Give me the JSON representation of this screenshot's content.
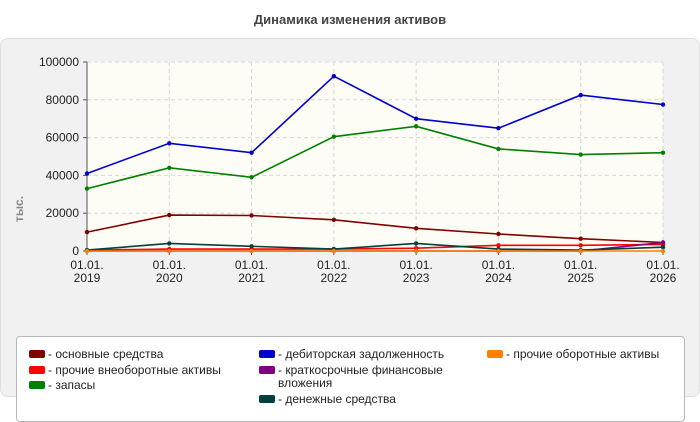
{
  "chart_data": {
    "type": "line",
    "title": "Динамика изменения активов",
    "ylabel": "тыс.",
    "xlabel": "",
    "ylim": [
      0,
      100000
    ],
    "yticks": [
      "0",
      "20000",
      "40000",
      "60000",
      "80000",
      "100000"
    ],
    "categories": [
      [
        "01.01.",
        "2019"
      ],
      [
        "01.01.",
        "2020"
      ],
      [
        "01.01.",
        "2021"
      ],
      [
        "01.01.",
        "2022"
      ],
      [
        "01.01.",
        "2023"
      ],
      [
        "01.01.",
        "2024"
      ],
      [
        "01.01.",
        "2025"
      ],
      [
        "01.01.",
        "2026"
      ]
    ],
    "grid": true,
    "legend_position": "bottom",
    "series": [
      {
        "name": "- основные средства",
        "color": "#800000",
        "values": [
          10000,
          19000,
          18800,
          16500,
          12000,
          9000,
          6500,
          4500
        ]
      },
      {
        "name": "- прочие внеоборотные активы",
        "color": "#ff0000",
        "values": [
          500,
          1000,
          1000,
          1000,
          1500,
          3000,
          3000,
          3500
        ]
      },
      {
        "name": "- запасы",
        "color": "#008000",
        "values": [
          33000,
          44000,
          39000,
          60500,
          66000,
          54000,
          51000,
          52000
        ]
      },
      {
        "name": "- дебиторская задолженность",
        "color": "#0000cc",
        "values": [
          41000,
          57000,
          52000,
          92500,
          70000,
          65000,
          82500,
          77500
        ]
      },
      {
        "name": "- краткосрочные финансовые вложения",
        "color": "#800080",
        "values": [
          0,
          0,
          0,
          0,
          0,
          0,
          0,
          4500
        ]
      },
      {
        "name": "- денежные средства",
        "color": "#004040",
        "values": [
          500,
          4000,
          2500,
          1000,
          4000,
          1000,
          500,
          2000
        ]
      },
      {
        "name": "- прочие оборотные активы",
        "color": "#ff8000",
        "values": [
          0,
          0,
          0,
          0,
          0,
          0,
          0,
          0
        ]
      }
    ]
  }
}
